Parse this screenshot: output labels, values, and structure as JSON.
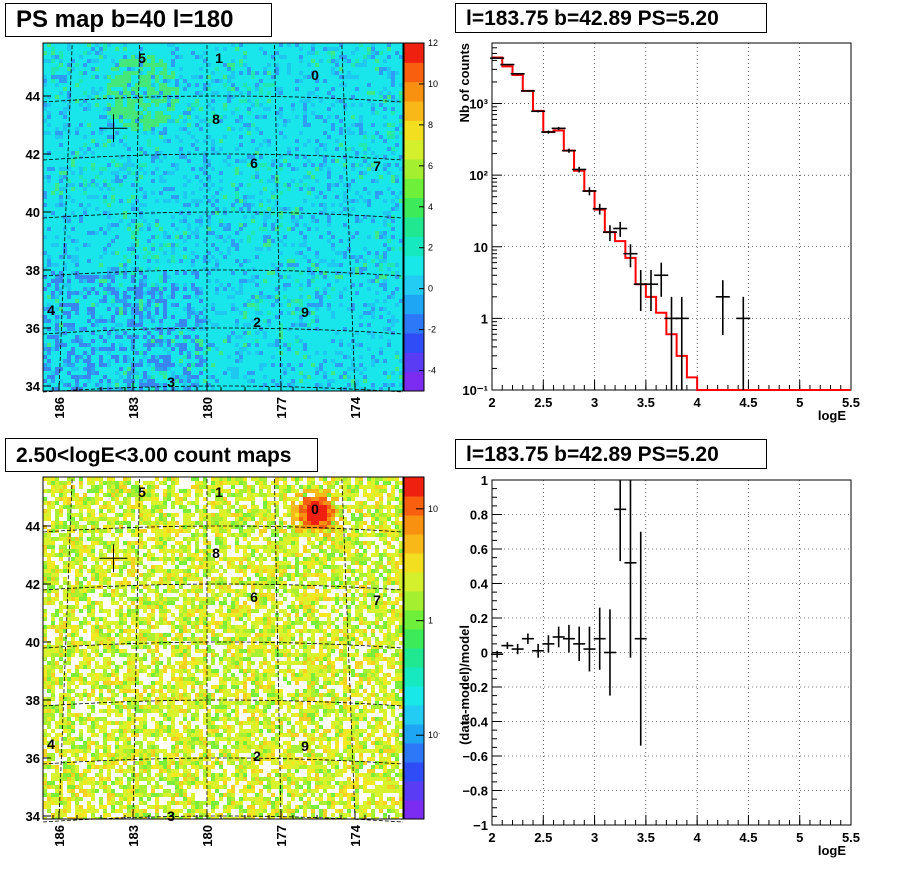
{
  "panels": {
    "ps_map": {
      "title": "PS map b=40 l=180"
    },
    "spectrum": {
      "title": "l=183.75 b=42.89 PS=5.20"
    },
    "count_map": {
      "title": "2.50<logE<3.00 count maps"
    },
    "residual": {
      "title": "l=183.75 b=42.89 PS=5.20"
    }
  },
  "chart_data": [
    {
      "type": "heatmap",
      "title": "PS map b=40 l=180",
      "x_ticks": [
        "186",
        "183",
        "180",
        "177",
        "174"
      ],
      "y_ticks": [
        "34",
        "36",
        "38",
        "40",
        "42",
        "44"
      ],
      "colorbar_ticks": [
        "12",
        "10",
        "8",
        "6",
        "4",
        "2",
        "0",
        "-2",
        "-4"
      ],
      "colorbar_range": [
        -5,
        12
      ],
      "sources": [
        "0",
        "1",
        "2",
        "3",
        "4",
        "5",
        "6",
        "7",
        "8",
        "9"
      ],
      "marker": {
        "l": 183.75,
        "b": 42.89
      }
    },
    {
      "type": "line",
      "title": "l=183.75 b=42.89 PS=5.20",
      "xlabel": "logE",
      "ylabel": "Nb of counts",
      "xlim": [
        2,
        5.5
      ],
      "ylim": [
        0.1,
        7000
      ],
      "yscale": "log",
      "x_ticks": [
        "2",
        "2.5",
        "3",
        "3.5",
        "4",
        "4.5",
        "5",
        "5.5"
      ],
      "y_ticks": [
        "10⁻¹",
        "1",
        "10",
        "10²",
        "10³"
      ],
      "grid": true,
      "series": [
        {
          "type": "data_points",
          "x": [
            2.05,
            2.15,
            2.25,
            2.35,
            2.45,
            2.55,
            2.65,
            2.75,
            2.85,
            2.95,
            3.05,
            3.15,
            3.25,
            3.35,
            3.45,
            3.55,
            3.65,
            3.75,
            3.85,
            4.25,
            4.45
          ],
          "y": [
            4300,
            3500,
            2600,
            1500,
            780,
            400,
            450,
            220,
            120,
            60,
            34,
            16,
            18,
            8,
            3,
            3,
            4,
            1,
            1,
            2,
            1
          ]
        },
        {
          "type": "model_step",
          "color": "#ff0000",
          "x": [
            2.05,
            2.15,
            2.25,
            2.35,
            2.45,
            2.55,
            2.65,
            2.75,
            2.85,
            2.95,
            3.05,
            3.15,
            3.25,
            3.35,
            3.45,
            3.55,
            3.65,
            3.75,
            3.85,
            3.95,
            4.05
          ],
          "y": [
            4400,
            3300,
            2500,
            1500,
            790,
            400,
            420,
            220,
            115,
            60,
            33,
            16,
            12,
            7,
            3,
            2,
            1.2,
            0.6,
            0.3,
            0.15,
            0.1
          ]
        }
      ]
    },
    {
      "type": "heatmap",
      "title": "2.50<logE<3.00 count maps",
      "x_ticks": [
        "186",
        "183",
        "180",
        "177",
        "174"
      ],
      "y_ticks": [
        "34",
        "36",
        "38",
        "40",
        "42",
        "44"
      ],
      "colorbar_ticks": [
        "10",
        "1",
        "10⁻¹"
      ],
      "colorbar_scale": "log",
      "sources": [
        "0",
        "1",
        "2",
        "3",
        "4",
        "5",
        "6",
        "7",
        "8",
        "9"
      ],
      "marker": {
        "l": 183.75,
        "b": 42.89
      }
    },
    {
      "type": "scatter",
      "title": "l=183.75 b=42.89 PS=5.20",
      "xlabel": "logE",
      "ylabel": "(data-model)/model",
      "xlim": [
        2,
        5.5
      ],
      "ylim": [
        -1,
        1
      ],
      "x_ticks": [
        "2",
        "2.5",
        "3",
        "3.5",
        "4",
        "4.5",
        "5",
        "5.5"
      ],
      "y_ticks": [
        "−1",
        "−0.8",
        "−0.6",
        "−0.4",
        "−0.2",
        "0",
        "0.2",
        "0.4",
        "0.6",
        "0.8",
        "1"
      ],
      "grid": true,
      "x": [
        2.05,
        2.15,
        2.25,
        2.35,
        2.45,
        2.55,
        2.65,
        2.75,
        2.85,
        2.95,
        3.05,
        3.15,
        3.25,
        3.35,
        3.45
      ],
      "y": [
        -0.01,
        0.04,
        0.02,
        0.08,
        0.01,
        0.05,
        0.09,
        0.08,
        0.05,
        0.02,
        0.08,
        0.0,
        0.83,
        0.52,
        0.08
      ],
      "yerr": [
        0.02,
        0.02,
        0.03,
        0.03,
        0.04,
        0.05,
        0.06,
        0.08,
        0.1,
        0.13,
        0.18,
        0.25,
        0.3,
        0.55,
        0.62
      ]
    }
  ]
}
